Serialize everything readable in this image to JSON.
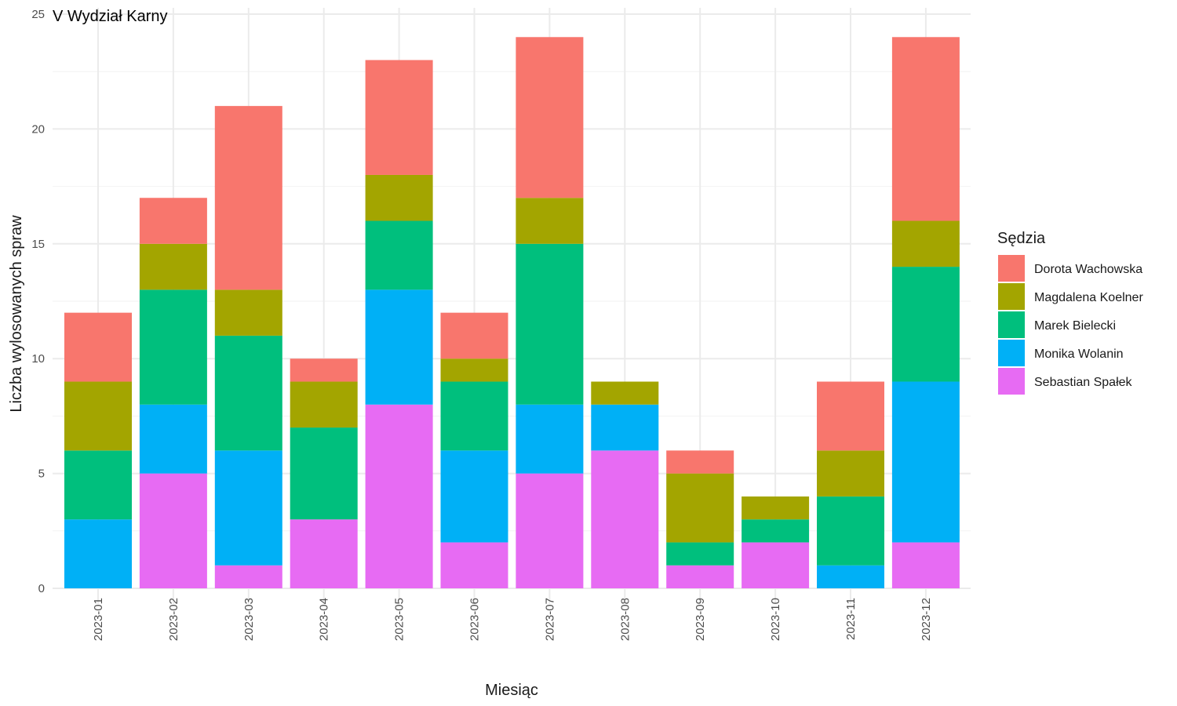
{
  "chart_data": {
    "type": "bar",
    "stacked": true,
    "title": "V Wydział Karny",
    "xlabel": "Miesiąc",
    "ylabel": "Liczba wylosowanych spraw",
    "ylim": [
      0,
      25
    ],
    "yticks": [
      0,
      5,
      10,
      15,
      20,
      25
    ],
    "grid": true,
    "legend": {
      "title": "Sędzia",
      "position": "right"
    },
    "categories": [
      "2023-01",
      "2023-02",
      "2023-03",
      "2023-04",
      "2023-05",
      "2023-06",
      "2023-07",
      "2023-08",
      "2023-09",
      "2023-10",
      "2023-11",
      "2023-12"
    ],
    "series": [
      {
        "name": "Sebastian Spałek",
        "color": "#E76BF3",
        "values": [
          0,
          5,
          1,
          3,
          8,
          2,
          5,
          6,
          1,
          2,
          0,
          2
        ]
      },
      {
        "name": "Monika Wolanin",
        "color": "#00B0F6",
        "values": [
          3,
          3,
          5,
          0,
          5,
          4,
          3,
          2,
          0,
          0,
          1,
          7
        ]
      },
      {
        "name": "Marek Bielecki",
        "color": "#00BF7D",
        "values": [
          3,
          5,
          5,
          4,
          3,
          3,
          7,
          0,
          1,
          1,
          3,
          5
        ]
      },
      {
        "name": "Magdalena Koelner",
        "color": "#A3A500",
        "values": [
          3,
          2,
          2,
          2,
          2,
          1,
          2,
          1,
          3,
          1,
          2,
          2
        ]
      },
      {
        "name": "Dorota Wachowska",
        "color": "#F8766D",
        "values": [
          3,
          2,
          8,
          1,
          5,
          2,
          7,
          0,
          1,
          0,
          3,
          8
        ]
      }
    ],
    "legend_order": [
      "Dorota Wachowska",
      "Magdalena Koelner",
      "Marek Bielecki",
      "Monika Wolanin",
      "Sebastian Spałek"
    ]
  }
}
